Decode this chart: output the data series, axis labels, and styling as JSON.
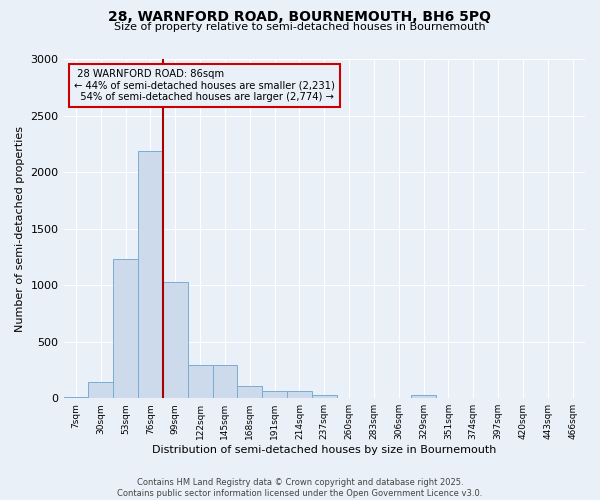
{
  "title": "28, WARNFORD ROAD, BOURNEMOUTH, BH6 5PQ",
  "subtitle": "Size of property relative to semi-detached houses in Bournemouth",
  "xlabel": "Distribution of semi-detached houses by size in Bournemouth",
  "ylabel": "Number of semi-detached properties",
  "bin_labels": [
    "7sqm",
    "30sqm",
    "53sqm",
    "76sqm",
    "99sqm",
    "122sqm",
    "145sqm",
    "168sqm",
    "191sqm",
    "214sqm",
    "237sqm",
    "260sqm",
    "283sqm",
    "306sqm",
    "329sqm",
    "351sqm",
    "374sqm",
    "397sqm",
    "420sqm",
    "443sqm",
    "466sqm"
  ],
  "bar_values": [
    15,
    145,
    1230,
    2190,
    1030,
    295,
    295,
    105,
    60,
    60,
    30,
    0,
    0,
    0,
    30,
    0,
    0,
    0,
    0,
    0,
    0
  ],
  "bar_color": "#ccdaec",
  "bar_edge_color": "#7aadd4",
  "property_label": "28 WARNFORD ROAD: 86sqm",
  "pct_smaller": 44,
  "pct_larger": 54,
  "n_smaller": 2231,
  "n_larger": 2774,
  "vline_color": "#aa0000",
  "annotation_box_color": "#cc0000",
  "bg_color": "#eaf0f8",
  "grid_color": "#ffffff",
  "footer_text": "Contains HM Land Registry data © Crown copyright and database right 2025.\nContains public sector information licensed under the Open Government Licence v3.0.",
  "ylim": [
    0,
    3000
  ],
  "yticks": [
    0,
    500,
    1000,
    1500,
    2000,
    2500,
    3000
  ]
}
